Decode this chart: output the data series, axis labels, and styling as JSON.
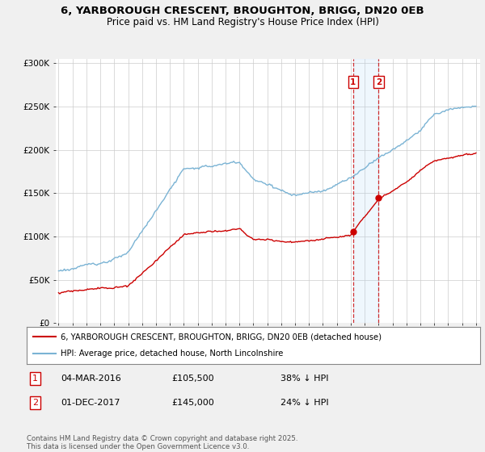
{
  "title_line1": "6, YARBOROUGH CRESCENT, BROUGHTON, BRIGG, DN20 0EB",
  "title_line2": "Price paid vs. HM Land Registry's House Price Index (HPI)",
  "yticks": [
    0,
    50000,
    100000,
    150000,
    200000,
    250000,
    300000
  ],
  "ytick_labels": [
    "£0",
    "£50K",
    "£100K",
    "£150K",
    "£200K",
    "£250K",
    "£300K"
  ],
  "hpi_color": "#7ab3d4",
  "price_color": "#cc0000",
  "marker1_date": "04-MAR-2016",
  "marker1_price": 105500,
  "marker1_pct": "38% ↓ HPI",
  "marker2_date": "01-DEC-2017",
  "marker2_price": 145000,
  "marker2_pct": "24% ↓ HPI",
  "marker1_x": 2016.17,
  "marker2_x": 2018.0,
  "legend_label1": "6, YARBOROUGH CRESCENT, BROUGHTON, BRIGG, DN20 0EB (detached house)",
  "legend_label2": "HPI: Average price, detached house, North Lincolnshire",
  "footnote": "Contains HM Land Registry data © Crown copyright and database right 2025.\nThis data is licensed under the Open Government Licence v3.0.",
  "background_color": "#f0f0f0",
  "plot_bg_color": "#ffffff",
  "grid_color": "#cccccc"
}
